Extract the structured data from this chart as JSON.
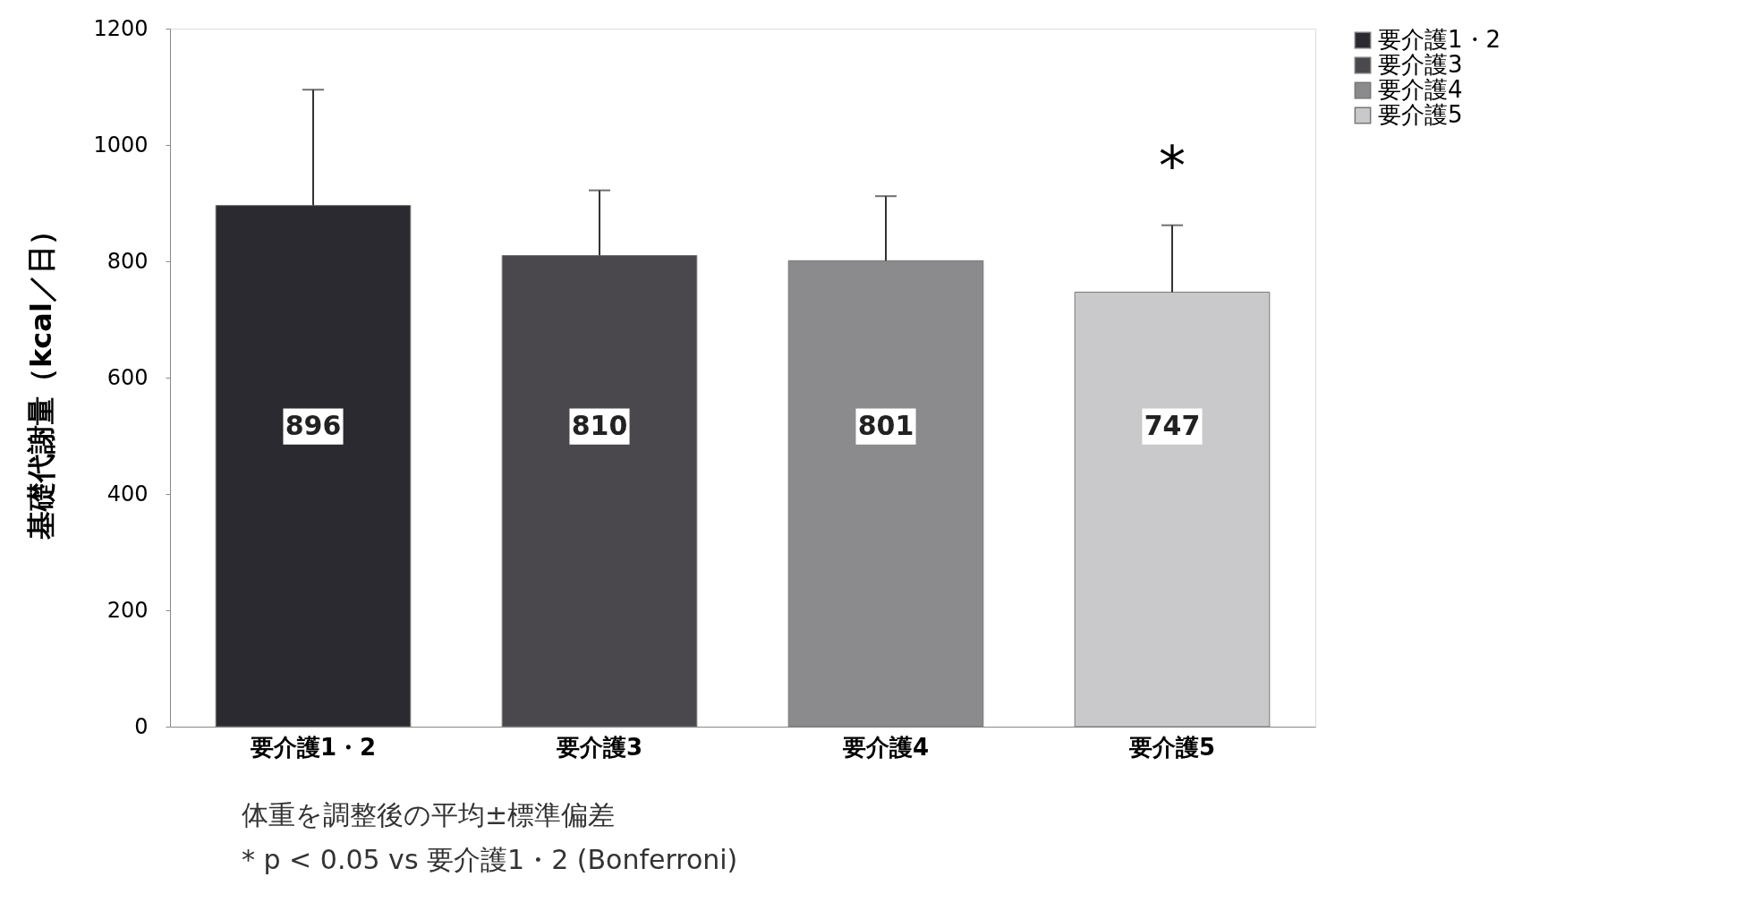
{
  "chart_data": {
    "type": "bar",
    "ylabel": "基礎代謝量（kcal／日）",
    "categories": [
      "要介護1・2",
      "要介護3",
      "要介護4",
      "要介護5"
    ],
    "stacked": true,
    "series": [
      {
        "name": "要介護1・2",
        "color": "#2b2a30",
        "values": [
          896,
          null,
          null,
          null
        ],
        "errors": [
          [
            896,
            1095
          ],
          null,
          null,
          null
        ]
      },
      {
        "name": "要介護3",
        "color": "#4b484d",
        "values": [
          null,
          810,
          null,
          null
        ],
        "errors": [
          null,
          [
            810,
            922
          ],
          null,
          null
        ]
      },
      {
        "name": "要介護4",
        "color": "#8b8a8d",
        "values": [
          null,
          null,
          801,
          null
        ],
        "errors": [
          null,
          null,
          [
            801,
            912
          ],
          null
        ]
      },
      {
        "name": "要介護5",
        "color": "#c9c9cb",
        "values": [
          null,
          null,
          null,
          747
        ],
        "errors": [
          null,
          null,
          null,
          [
            747,
            862
          ]
        ]
      }
    ],
    "data_labels": true,
    "ylim": [
      0,
      1200
    ],
    "yticks": [
      0,
      200,
      400,
      600,
      800,
      1000,
      1200
    ],
    "grid": false,
    "legend": "right",
    "annotations": [
      "*",
      "体重を調整後の平均±標準偏差",
      "* p < 0.05 vs 要介護1・2 (Bonferroni)"
    ]
  }
}
